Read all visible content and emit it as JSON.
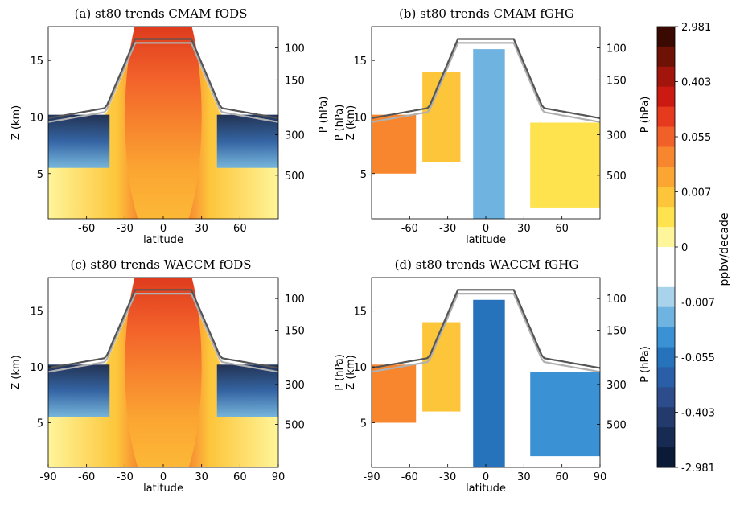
{
  "chart_data": [
    {
      "type": "heatmap",
      "panel": "a",
      "title": "(a) st80 trends CMAM fODS",
      "xlabel": "latitude",
      "ylabel": "Z (km)",
      "ylabel_right": "P (hPa)",
      "xlim": [
        -90,
        90
      ],
      "ylim": [
        1,
        18
      ],
      "xticks": [
        "-60",
        "-30",
        "0",
        "30",
        "60"
      ],
      "yticks": [
        "5",
        "10",
        "15"
      ],
      "pticks": [
        "100",
        "150",
        "300",
        "500"
      ],
      "pattern": "ods"
    },
    {
      "type": "heatmap",
      "panel": "b",
      "title": "(b) st80 trends CMAM fGHG",
      "xlabel": "latitude",
      "ylabel": "P (hPa)\nZ (km)",
      "ylabel_right": "P (hPa)",
      "xlim": [
        -90,
        90
      ],
      "ylim": [
        1,
        18
      ],
      "xticks": [
        "-60",
        "-30",
        "0",
        "30",
        "60"
      ],
      "yticks": [
        "5",
        "10",
        "15"
      ],
      "pticks": [
        "100",
        "150",
        "300",
        "500"
      ],
      "pattern": "ghg"
    },
    {
      "type": "heatmap",
      "panel": "c",
      "title": "(c) st80 trends WACCM fODS",
      "xlabel": "latitude",
      "ylabel": "Z (km)",
      "ylabel_right": "",
      "xlim": [
        -90,
        90
      ],
      "ylim": [
        1,
        18
      ],
      "xticks": [
        "-90",
        "-60",
        "-30",
        "0",
        "30",
        "60",
        "90"
      ],
      "yticks": [
        "5",
        "10",
        "15"
      ],
      "pticks": [
        "100",
        "150",
        "300",
        "500"
      ],
      "pattern": "ods"
    },
    {
      "type": "heatmap",
      "panel": "d",
      "title": "(d) st80 trends WACCM fGHG",
      "xlabel": "latitude",
      "ylabel": "P (hPa)\nZ (km)",
      "ylabel_right": "P (hPa)",
      "xlim": [
        -90,
        90
      ],
      "ylim": [
        1,
        18
      ],
      "xticks": [
        "-90",
        "-60",
        "-30",
        "0",
        "30",
        "60",
        "90"
      ],
      "yticks": [
        "5",
        "10",
        "15"
      ],
      "pticks": [
        "100",
        "150",
        "300",
        "500"
      ],
      "pattern": "ghg"
    }
  ],
  "colorbar": {
    "label": "ppbv/decade",
    "tick_labels": [
      "2.981",
      "0.403",
      "0.055",
      "0.007",
      "0",
      "-0.007",
      "-0.055",
      "-0.403",
      "-2.981"
    ],
    "colors": [
      "#3a0a02",
      "#6e1206",
      "#a1150d",
      "#cc1a12",
      "#e63a1e",
      "#f2602a",
      "#f7862e",
      "#fba632",
      "#fdc53a",
      "#fee24e",
      "#fff59a",
      "#ffffff",
      "#ffffff",
      "#a9d3ea",
      "#6fb3e0",
      "#3a92d4",
      "#2672bb",
      "#2a5ea6",
      "#2c4c8c",
      "#233a6c",
      "#172a52",
      "#0b1a36"
    ]
  }
}
